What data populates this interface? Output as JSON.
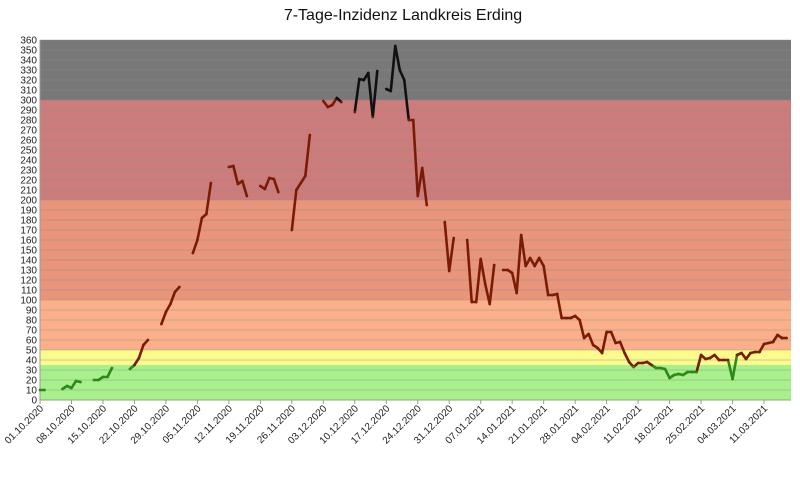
{
  "chart_data": {
    "type": "line",
    "title": "7-Tage-Inzidenz Landkreis Erding",
    "xlabel": "",
    "ylabel": "",
    "x_start": "2020-10-01",
    "x_end": "2021-03-17",
    "ylim": [
      0,
      360
    ],
    "y_tick_step": 10,
    "grid": true,
    "x_tick_labels": [
      "01.10.2020",
      "08.10.2020",
      "15.10.2020",
      "22.10.2020",
      "29.10.2020",
      "05.11.2020",
      "12.11.2020",
      "19.11.2020",
      "26.11.2020",
      "03.12.2020",
      "10.12.2020",
      "17.12.2020",
      "24.12.2020",
      "31.12.2020",
      "07.01.2021",
      "14.01.2021",
      "21.01.2021",
      "28.01.2021",
      "04.02.2021",
      "11.02.2021",
      "18.02.2021",
      "25.02.2021",
      "04.03.2021",
      "11.03.2021"
    ],
    "x_tick_dates": [
      "2020-10-01",
      "2020-10-08",
      "2020-10-15",
      "2020-10-22",
      "2020-10-29",
      "2020-11-05",
      "2020-11-12",
      "2020-11-19",
      "2020-11-26",
      "2020-12-03",
      "2020-12-10",
      "2020-12-17",
      "2020-12-24",
      "2020-12-31",
      "2021-01-07",
      "2021-01-14",
      "2021-01-21",
      "2021-01-28",
      "2021-02-04",
      "2021-02-11",
      "2021-02-18",
      "2021-02-25",
      "2021-03-04",
      "2021-03-11"
    ],
    "bands": [
      {
        "from": 0,
        "to": 35,
        "color": "#a8f08c"
      },
      {
        "from": 35,
        "to": 50,
        "color": "#fbfb8c"
      },
      {
        "from": 50,
        "to": 100,
        "color": "#fbb08a"
      },
      {
        "from": 100,
        "to": 200,
        "color": "#e8957c"
      },
      {
        "from": 200,
        "to": 300,
        "color": "#cd7c7c"
      },
      {
        "from": 300,
        "to": 360,
        "color": "#787878"
      }
    ],
    "line_colors": {
      "green": "#2e8a18",
      "dark_red": "#7a1c05",
      "black": "#111111"
    },
    "series": [
      {
        "values": [
          [
            "2020-10-01",
            10
          ],
          [
            "2020-10-02",
            10
          ],
          null,
          [
            "2020-10-06",
            11
          ],
          [
            "2020-10-07",
            14
          ],
          [
            "2020-10-08",
            12
          ],
          [
            "2020-10-09",
            19
          ],
          [
            "2020-10-10",
            18
          ],
          null,
          [
            "2020-10-13",
            20
          ],
          [
            "2020-10-14",
            20
          ],
          [
            "2020-10-15",
            23
          ],
          [
            "2020-10-16",
            23
          ],
          [
            "2020-10-17",
            32
          ],
          null,
          [
            "2020-10-21",
            31
          ],
          [
            "2020-10-22",
            35
          ],
          [
            "2020-10-23",
            42
          ],
          [
            "2020-10-24",
            55
          ],
          [
            "2020-10-25",
            60
          ],
          null,
          [
            "2020-10-28",
            76
          ],
          [
            "2020-10-29",
            88
          ],
          [
            "2020-10-30",
            96
          ],
          [
            "2020-10-31",
            108
          ],
          [
            "2020-11-01",
            113
          ],
          null,
          [
            "2020-11-04",
            147
          ],
          [
            "2020-11-05",
            160
          ],
          [
            "2020-11-06",
            182
          ],
          [
            "2020-11-07",
            186
          ],
          [
            "2020-11-08",
            217
          ],
          null,
          [
            "2020-11-12",
            233
          ],
          [
            "2020-11-13",
            234
          ],
          [
            "2020-11-14",
            216
          ],
          [
            "2020-11-15",
            219
          ],
          [
            "2020-11-16",
            204
          ],
          null,
          [
            "2020-11-19",
            214
          ],
          [
            "2020-11-20",
            211
          ],
          [
            "2020-11-21",
            222
          ],
          [
            "2020-11-22",
            221
          ],
          [
            "2020-11-23",
            208
          ],
          null,
          [
            "2020-11-26",
            170
          ],
          [
            "2020-11-27",
            210
          ],
          [
            "2020-11-28",
            217
          ],
          [
            "2020-11-29",
            224
          ],
          [
            "2020-11-30",
            265
          ],
          null,
          [
            "2020-12-03",
            299
          ],
          [
            "2020-12-04",
            293
          ],
          [
            "2020-12-05",
            295
          ],
          [
            "2020-12-06",
            302
          ],
          [
            "2020-12-07",
            298
          ],
          null,
          [
            "2020-12-10",
            288
          ],
          [
            "2020-12-11",
            321
          ],
          [
            "2020-12-12",
            320
          ],
          [
            "2020-12-13",
            327
          ],
          [
            "2020-12-14",
            283
          ],
          [
            "2020-12-15",
            329
          ],
          null,
          [
            "2020-12-17",
            311
          ],
          [
            "2020-12-18",
            309
          ],
          [
            "2020-12-19",
            354
          ],
          [
            "2020-12-20",
            330
          ],
          [
            "2020-12-21",
            320
          ],
          [
            "2020-12-22",
            280
          ],
          [
            "2020-12-23",
            280
          ],
          [
            "2020-12-24",
            204
          ],
          [
            "2020-12-25",
            232
          ],
          [
            "2020-12-26",
            195
          ],
          null,
          [
            "2020-12-30",
            178
          ],
          [
            "2020-12-31",
            129
          ],
          [
            "2021-01-01",
            162
          ],
          null,
          [
            "2021-01-04",
            160
          ],
          [
            "2021-01-05",
            98
          ],
          [
            "2021-01-06",
            98
          ],
          [
            "2021-01-07",
            141
          ],
          [
            "2021-01-08",
            116
          ],
          [
            "2021-01-09",
            96
          ],
          [
            "2021-01-10",
            135
          ],
          null,
          [
            "2021-01-12",
            130
          ],
          [
            "2021-01-13",
            130
          ],
          [
            "2021-01-14",
            127
          ],
          [
            "2021-01-15",
            107
          ],
          [
            "2021-01-16",
            165
          ],
          [
            "2021-01-17",
            134
          ],
          [
            "2021-01-18",
            142
          ],
          [
            "2021-01-19",
            134
          ],
          [
            "2021-01-20",
            142
          ],
          [
            "2021-01-21",
            134
          ],
          [
            "2021-01-22",
            105
          ],
          [
            "2021-01-23",
            105
          ],
          [
            "2021-01-24",
            106
          ],
          [
            "2021-01-25",
            82
          ],
          [
            "2021-01-26",
            82
          ],
          [
            "2021-01-27",
            82
          ],
          [
            "2021-01-28",
            84
          ],
          [
            "2021-01-29",
            80
          ],
          [
            "2021-01-30",
            62
          ],
          [
            "2021-01-31",
            66
          ],
          [
            "2021-02-01",
            55
          ],
          [
            "2021-02-02",
            52
          ],
          [
            "2021-02-03",
            47
          ],
          [
            "2021-02-04",
            68
          ],
          [
            "2021-02-05",
            68
          ],
          [
            "2021-02-06",
            57
          ],
          [
            "2021-02-07",
            58
          ],
          [
            "2021-02-08",
            47
          ],
          [
            "2021-02-09",
            38
          ],
          [
            "2021-02-10",
            33
          ],
          [
            "2021-02-11",
            37
          ],
          [
            "2021-02-12",
            37
          ],
          [
            "2021-02-13",
            38
          ],
          [
            "2021-02-14",
            35
          ],
          [
            "2021-02-15",
            32
          ],
          [
            "2021-02-16",
            32
          ],
          [
            "2021-02-17",
            31
          ],
          [
            "2021-02-18",
            22
          ],
          [
            "2021-02-19",
            25
          ],
          [
            "2021-02-20",
            26
          ],
          [
            "2021-02-21",
            25
          ],
          [
            "2021-02-22",
            28
          ],
          [
            "2021-02-23",
            28
          ],
          [
            "2021-02-24",
            28
          ],
          [
            "2021-02-25",
            45
          ],
          [
            "2021-02-26",
            41
          ],
          [
            "2021-02-27",
            42
          ],
          [
            "2021-02-28",
            45
          ],
          [
            "2021-03-01",
            40
          ],
          [
            "2021-03-02",
            40
          ],
          [
            "2021-03-03",
            40
          ],
          [
            "2021-03-04",
            21
          ],
          [
            "2021-03-05",
            45
          ],
          [
            "2021-03-06",
            47
          ],
          [
            "2021-03-07",
            41
          ],
          [
            "2021-03-08",
            47
          ],
          [
            "2021-03-09",
            48
          ],
          [
            "2021-03-10",
            48
          ],
          [
            "2021-03-11",
            56
          ],
          [
            "2021-03-12",
            57
          ],
          [
            "2021-03-13",
            58
          ],
          [
            "2021-03-14",
            65
          ],
          [
            "2021-03-15",
            62
          ],
          [
            "2021-03-16",
            62
          ]
        ]
      }
    ]
  }
}
